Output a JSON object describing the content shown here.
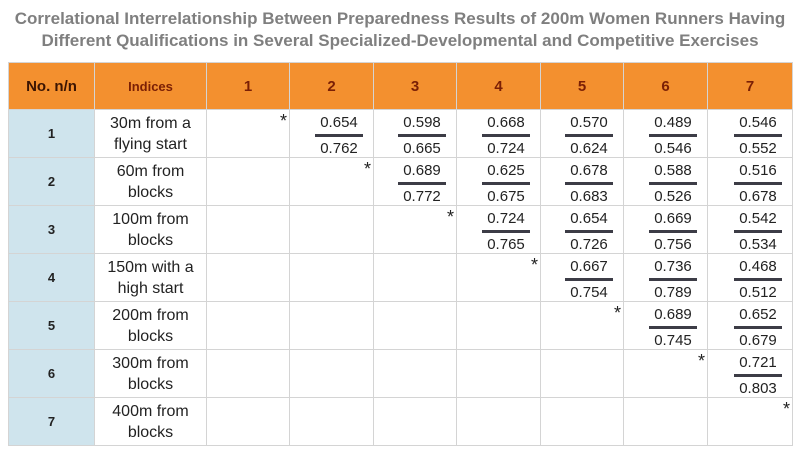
{
  "title_line1": "Correlational Interrelationship Between Preparedness Results of 200m Women Runners Having",
  "title_line2": "Different Qualifications in Several Specialized-Developmental and Competitive Exercises",
  "headers": [
    "No. n/n",
    "Indices",
    "1",
    "2",
    "3",
    "4",
    "5",
    "6",
    "7"
  ],
  "diagonal_mark": "*",
  "rows": [
    {
      "no": "1",
      "exercise": "30m from a flying start",
      "values": [
        [
          "0.654",
          "0.762"
        ],
        [
          "0.598",
          "0.665"
        ],
        [
          "0.668",
          "0.724"
        ],
        [
          "0.570",
          "0.624"
        ],
        [
          "0.489",
          "0.546"
        ],
        [
          "0.546",
          "0.552"
        ]
      ]
    },
    {
      "no": "2",
      "exercise": "60m from blocks",
      "values": [
        [
          "0.689",
          "0.772"
        ],
        [
          "0.625",
          "0.675"
        ],
        [
          "0.678",
          "0.683"
        ],
        [
          "0.588",
          "0.526"
        ],
        [
          "0.516",
          "0.678"
        ]
      ]
    },
    {
      "no": "3",
      "exercise": "100m from blocks",
      "values": [
        [
          "0.724",
          "0.765"
        ],
        [
          "0.654",
          "0.726"
        ],
        [
          "0.669",
          "0.756"
        ],
        [
          "0.542",
          "0.534"
        ]
      ]
    },
    {
      "no": "4",
      "exercise": "150m with a high start",
      "values": [
        [
          "0.667",
          "0.754"
        ],
        [
          "0.736",
          "0.789"
        ],
        [
          "0.468",
          "0.512"
        ]
      ]
    },
    {
      "no": "5",
      "exercise": "200m from blocks",
      "values": [
        [
          "0.689",
          "0.745"
        ],
        [
          "0.652",
          "0.679"
        ]
      ]
    },
    {
      "no": "6",
      "exercise": "300m from blocks",
      "values": [
        [
          "0.721",
          "0.803"
        ]
      ]
    },
    {
      "no": "7",
      "exercise": "400m from blocks",
      "values": []
    }
  ]
}
